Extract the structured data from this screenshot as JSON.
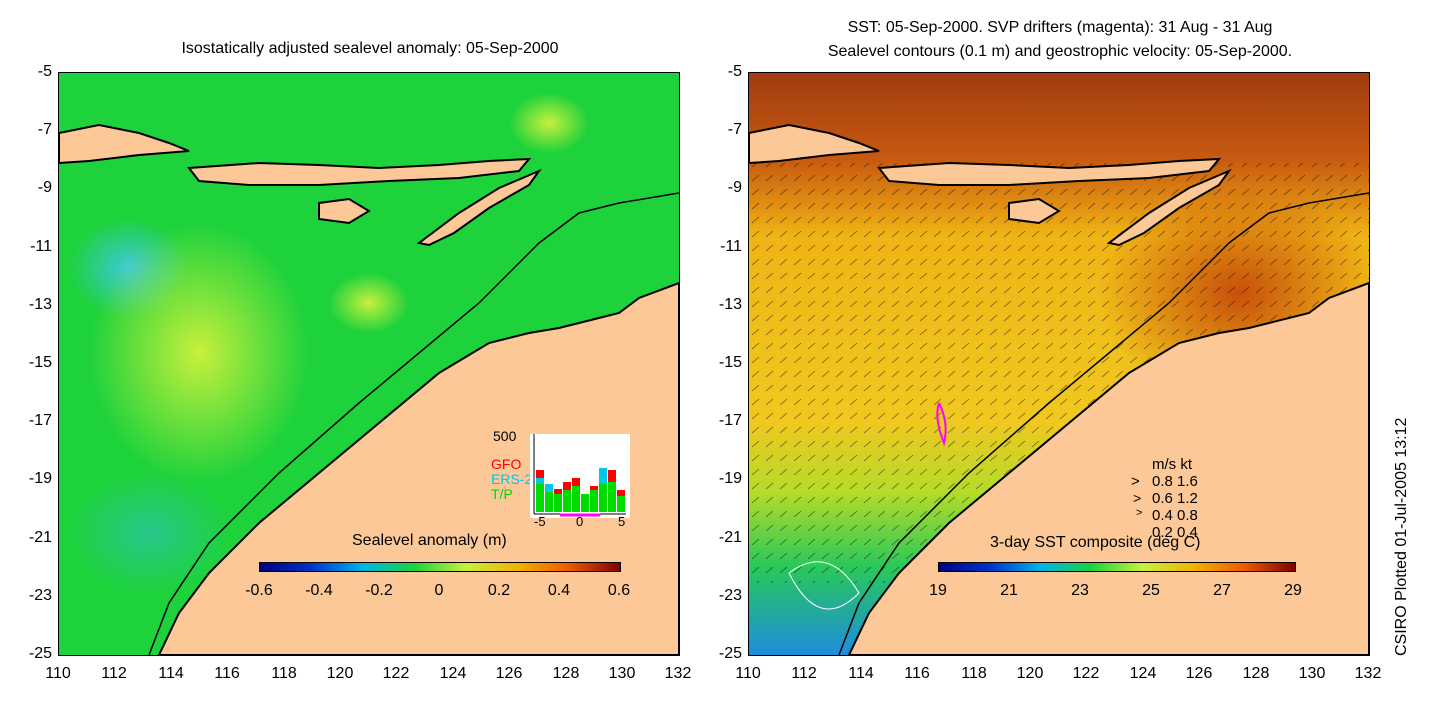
{
  "left_panel": {
    "title": "Isostatically adjusted sealevel anomaly: 05-Sep-2000",
    "colorbar_label": "Sealevel anomaly (m)",
    "colorbar_ticks": [
      "-0.6",
      "-0.4",
      "-0.2",
      "0",
      "0.2",
      "0.4",
      "0.6"
    ],
    "inset": {
      "y_max_label": "500",
      "legend": [
        {
          "label": "GFO",
          "color": "#ff0000"
        },
        {
          "label": "ERS-2",
          "color": "#00c8e6"
        },
        {
          "label": "T/P",
          "color": "#00dc00"
        }
      ],
      "x_ticks": [
        "-5",
        "0",
        "5"
      ]
    }
  },
  "right_panel": {
    "title_line1": "SST: 05-Sep-2000. SVP drifters (magenta): 31 Aug - 31 Aug",
    "title_line2": "Sealevel contours (0.1 m) and geostrophic velocity: 05-Sep-2000.",
    "colorbar_label": "3-day SST composite (deg C)",
    "colorbar_ticks": [
      "19",
      "21",
      "23",
      "25",
      "27",
      "29"
    ],
    "speed_legend": {
      "header": "m/s  kt",
      "rows": [
        "0.8  1.6",
        "0.6  1.2",
        "0.4  0.8",
        "0.2  0.4"
      ]
    }
  },
  "y_ticks": [
    "-5",
    "-7",
    "-9",
    "-11",
    "-13",
    "-15",
    "-17",
    "-19",
    "-21",
    "-23",
    "-25"
  ],
  "x_ticks": [
    "110",
    "112",
    "114",
    "116",
    "118",
    "120",
    "122",
    "124",
    "126",
    "128",
    "130",
    "132"
  ],
  "credit": "CSIRO Plotted 01-Jul-2005 13:12",
  "colors": {
    "land": "#fcc898",
    "sla_background": "#1ed23c",
    "sst_background": "#f0b414"
  }
}
